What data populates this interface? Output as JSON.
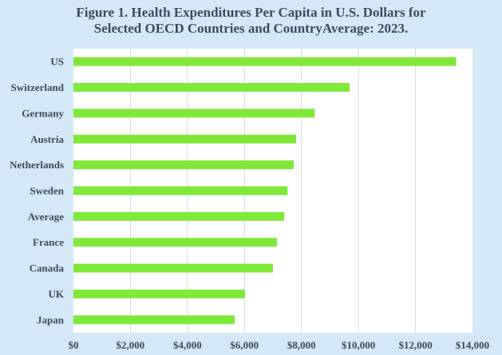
{
  "chart_data": {
    "type": "bar",
    "orientation": "horizontal",
    "title": "Figure 1. Health Expenditures Per Capita in U.S. Dollars for Selected OECD Countries and CountryAverage: 2023.",
    "title_lines": [
      "Figure 1. Health Expenditures Per Capita in U.S. Dollars for",
      "Selected OECD Countries and CountryAverage: 2023."
    ],
    "xlabel": "",
    "ylabel": "",
    "categories": [
      "US",
      "Switzerland",
      "Germany",
      "Austria",
      "Netherlands",
      "Sweden",
      "Average",
      "France",
      "Canada",
      "UK",
      "Japan"
    ],
    "values": [
      13430,
      9690,
      8460,
      7815,
      7730,
      7510,
      7395,
      7140,
      7000,
      6020,
      5660
    ],
    "xlim": [
      0,
      14000
    ],
    "xticks": [
      0,
      2000,
      4000,
      6000,
      8000,
      10000,
      12000,
      14000
    ],
    "xtick_labels": [
      "$0",
      "$2,000",
      "$4,000",
      "$6,000",
      "$8,000",
      "$10,000",
      "$12,000",
      "$14,000"
    ],
    "grid": "vertical",
    "legend": "none",
    "colors": {
      "bar": "#80e83a",
      "background": "#d3e9f8",
      "plot_background": "#ffffff",
      "grid": "#d9d9d9",
      "text": "#3a4a5c"
    }
  }
}
